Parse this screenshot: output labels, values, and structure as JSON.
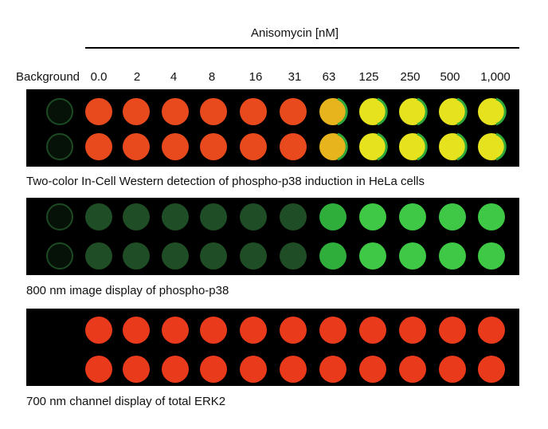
{
  "header": {
    "title": "Anisomycin [nM]"
  },
  "columns": [
    "Background",
    "0.0",
    "2",
    "4",
    "8",
    "16",
    "31",
    "63",
    "125",
    "250",
    "500",
    "1,000"
  ],
  "panels": [
    {
      "caption": "Two-color In-Cell Western detection of phospho-p38 induction in HeLa cells"
    },
    {
      "caption": "800 nm image display of phospho-p38"
    },
    {
      "caption": "700 nm channel display of total ERK2"
    }
  ]
}
